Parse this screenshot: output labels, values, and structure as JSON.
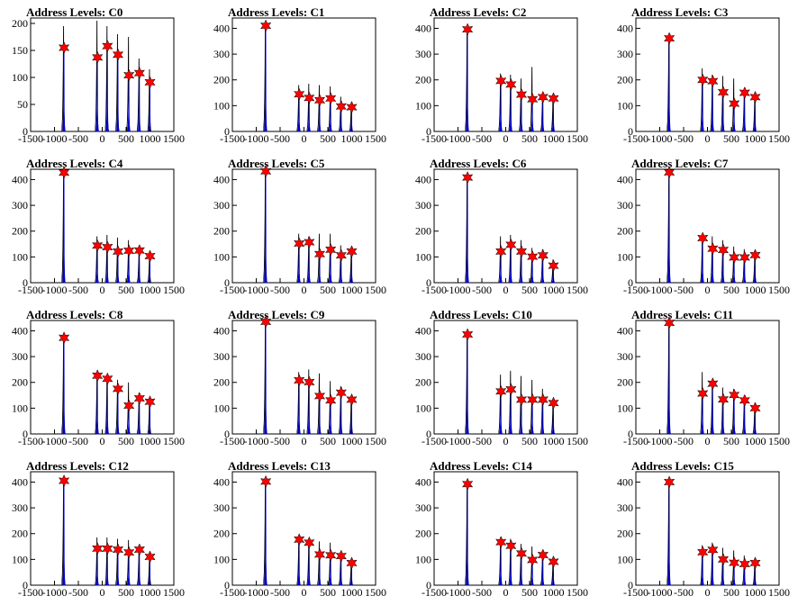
{
  "chart_data": [
    {
      "type": "histogram",
      "title": "Address Levels: C0",
      "xlim": [
        -1500,
        1500
      ],
      "ylim": [
        0,
        210
      ],
      "xticks": [
        -1500,
        -1000,
        -500,
        0,
        500,
        1000,
        1500
      ],
      "yticks": [
        0,
        50,
        100,
        150,
        200
      ],
      "tick_labels_x": [
        "-1500",
        "-1000",
        "-500",
        "0",
        "500",
        "1000",
        "1500"
      ],
      "tick_labels_y": [
        "0",
        "50",
        "100",
        "150",
        "200"
      ],
      "peaks_x": [
        -800,
        -100,
        110,
        330,
        560,
        780,
        1000
      ],
      "peak_max": [
        195,
        205,
        195,
        180,
        175,
        135,
        115
      ],
      "peak_blue": [
        160,
        140,
        165,
        150,
        105,
        110,
        95
      ],
      "stars_y": [
        155,
        137,
        158,
        142,
        104,
        108,
        91
      ]
    },
    {
      "type": "histogram",
      "title": "Address Levels: C1",
      "xlim": [
        -1500,
        1500
      ],
      "ylim": [
        0,
        440
      ],
      "xticks": [
        -1500,
        -1000,
        -500,
        0,
        500,
        1000,
        1500
      ],
      "yticks": [
        0,
        100,
        200,
        300,
        400
      ],
      "tick_labels_x": [
        "-1500",
        "-1000",
        "-500",
        "0",
        "500",
        "1000",
        "1500"
      ],
      "tick_labels_y": [
        "0",
        "100",
        "200",
        "300",
        "400"
      ],
      "peaks_x": [
        -800,
        -100,
        110,
        330,
        560,
        780,
        1000
      ],
      "peak_max": [
        410,
        180,
        185,
        180,
        175,
        135,
        110
      ],
      "peak_blue": [
        405,
        150,
        135,
        125,
        125,
        105,
        95
      ],
      "stars_y": [
        410,
        144,
        130,
        121,
        128,
        97,
        94
      ]
    },
    {
      "type": "histogram",
      "title": "Address Levels: C2",
      "xlim": [
        -1500,
        1500
      ],
      "ylim": [
        0,
        440
      ],
      "xticks": [
        -1500,
        -1000,
        -500,
        0,
        500,
        1000,
        1500
      ],
      "yticks": [
        0,
        100,
        200,
        300,
        400
      ],
      "tick_labels_x": [
        "-1500",
        "-1000",
        "-500",
        "0",
        "500",
        "1000",
        "1500"
      ],
      "tick_labels_y": [
        "0",
        "100",
        "200",
        "300",
        "400"
      ],
      "peaks_x": [
        -800,
        -100,
        110,
        330,
        560,
        780,
        1000
      ],
      "peak_max": [
        400,
        225,
        220,
        205,
        250,
        145,
        140
      ],
      "peak_blue": [
        395,
        195,
        185,
        145,
        125,
        135,
        130
      ],
      "stars_y": [
        396,
        196,
        182,
        143,
        125,
        133,
        128
      ]
    },
    {
      "type": "histogram",
      "title": "Address Levels: C3",
      "xlim": [
        -1500,
        1500
      ],
      "ylim": [
        0,
        440
      ],
      "xticks": [
        -1500,
        -1000,
        -500,
        0,
        500,
        1000,
        1500
      ],
      "yticks": [
        0,
        100,
        200,
        300,
        400
      ],
      "tick_labels_x": [
        "-1500",
        "-1000",
        "-500",
        "0",
        "500",
        "1000",
        "1500"
      ],
      "tick_labels_y": [
        "0",
        "100",
        "200",
        "300",
        "400"
      ],
      "peaks_x": [
        -800,
        -100,
        110,
        330,
        560,
        780,
        1000
      ],
      "peak_max": [
        365,
        245,
        220,
        215,
        205,
        160,
        140
      ],
      "peak_blue": [
        360,
        195,
        190,
        150,
        110,
        145,
        130
      ],
      "stars_y": [
        361,
        200,
        195,
        152,
        108,
        150,
        133
      ]
    },
    {
      "type": "histogram",
      "title": "Address Levels: C4",
      "xlim": [
        -1500,
        1500
      ],
      "ylim": [
        0,
        440
      ],
      "xticks": [
        -1500,
        -1000,
        -500,
        0,
        500,
        1000,
        1500
      ],
      "yticks": [
        0,
        100,
        200,
        300,
        400
      ],
      "tick_labels_x": [
        "-1500",
        "-1000",
        "-500",
        "0",
        "500",
        "1000",
        "1500"
      ],
      "tick_labels_y": [
        "0",
        "100",
        "200",
        "300",
        "400"
      ],
      "peaks_x": [
        -800,
        -100,
        110,
        330,
        560,
        780,
        1000
      ],
      "peak_max": [
        430,
        180,
        185,
        175,
        165,
        130,
        110
      ],
      "peak_blue": [
        425,
        140,
        140,
        125,
        125,
        120,
        100
      ],
      "stars_y": [
        427,
        144,
        138,
        121,
        124,
        125,
        103
      ]
    },
    {
      "type": "histogram",
      "title": "Address Levels: C5",
      "xlim": [
        -1500,
        1500
      ],
      "ylim": [
        0,
        440
      ],
      "xticks": [
        -1500,
        -1000,
        -500,
        0,
        500,
        1000,
        1500
      ],
      "yticks": [
        0,
        100,
        200,
        300,
        400
      ],
      "tick_labels_x": [
        "-1500",
        "-1000",
        "-500",
        "0",
        "500",
        "1000",
        "1500"
      ],
      "tick_labels_y": [
        "0",
        "100",
        "200",
        "300",
        "400"
      ],
      "peaks_x": [
        -800,
        -100,
        110,
        330,
        560,
        780,
        1000
      ],
      "peak_max": [
        440,
        190,
        180,
        190,
        190,
        145,
        130
      ],
      "peak_blue": [
        430,
        155,
        160,
        110,
        125,
        105,
        120
      ],
      "stars_y": [
        432,
        152,
        157,
        111,
        128,
        106,
        121
      ]
    },
    {
      "type": "histogram",
      "title": "Address Levels: C6",
      "xlim": [
        -1500,
        1500
      ],
      "ylim": [
        0,
        440
      ],
      "xticks": [
        -1500,
        -1000,
        -500,
        0,
        500,
        1000,
        1500
      ],
      "yticks": [
        0,
        100,
        200,
        300,
        400
      ],
      "tick_labels_x": [
        "-1500",
        "-1000",
        "-500",
        "0",
        "500",
        "1000",
        "1500"
      ],
      "tick_labels_y": [
        "0",
        "100",
        "200",
        "300",
        "400"
      ],
      "peaks_x": [
        -800,
        -100,
        110,
        330,
        560,
        780,
        1000
      ],
      "peak_max": [
        410,
        180,
        185,
        165,
        135,
        130,
        90
      ],
      "peak_blue": [
        405,
        120,
        150,
        120,
        100,
        105,
        70
      ],
      "stars_y": [
        408,
        121,
        147,
        121,
        101,
        106,
        66
      ]
    },
    {
      "type": "histogram",
      "title": "Address Levels: C7",
      "xlim": [
        -1500,
        1500
      ],
      "ylim": [
        0,
        440
      ],
      "xticks": [
        -1500,
        -1000,
        -500,
        0,
        500,
        1000,
        1500
      ],
      "yticks": [
        0,
        100,
        200,
        300,
        400
      ],
      "tick_labels_x": [
        "-1500",
        "-1000",
        "-500",
        "0",
        "500",
        "1000",
        "1500"
      ],
      "tick_labels_y": [
        "0",
        "100",
        "200",
        "300",
        "400"
      ],
      "peaks_x": [
        -800,
        -100,
        110,
        330,
        560,
        780,
        1000
      ],
      "peak_max": [
        430,
        185,
        180,
        165,
        140,
        130,
        115
      ],
      "peak_blue": [
        425,
        175,
        135,
        130,
        100,
        100,
        105
      ],
      "stars_y": [
        428,
        173,
        132,
        127,
        98,
        98,
        107
      ]
    },
    {
      "type": "histogram",
      "title": "Address Levels: C8",
      "xlim": [
        -1500,
        1500
      ],
      "ylim": [
        0,
        440
      ],
      "xticks": [
        -1500,
        -1000,
        -500,
        0,
        500,
        1000,
        1500
      ],
      "yticks": [
        0,
        100,
        200,
        300,
        400
      ],
      "tick_labels_x": [
        "-1500",
        "-1000",
        "-500",
        "0",
        "500",
        "1000",
        "1500"
      ],
      "tick_labels_y": [
        "0",
        "100",
        "200",
        "300",
        "400"
      ],
      "peaks_x": [
        -800,
        -100,
        110,
        330,
        560,
        780,
        1000
      ],
      "peak_max": [
        380,
        235,
        230,
        210,
        200,
        160,
        140
      ],
      "peak_blue": [
        375,
        225,
        215,
        175,
        110,
        140,
        125
      ],
      "stars_y": [
        373,
        226,
        214,
        175,
        110,
        138,
        125
      ]
    },
    {
      "type": "histogram",
      "title": "Address Levels: C9",
      "xlim": [
        -1500,
        1500
      ],
      "ylim": [
        0,
        440
      ],
      "xticks": [
        -1500,
        -1000,
        -500,
        0,
        500,
        1000,
        1500
      ],
      "yticks": [
        0,
        100,
        200,
        300,
        400
      ],
      "tick_labels_x": [
        "-1500",
        "-1000",
        "-500",
        "0",
        "500",
        "1000",
        "1500"
      ],
      "tick_labels_y": [
        "0",
        "100",
        "200",
        "300",
        "400"
      ],
      "peaks_x": [
        -800,
        -100,
        110,
        330,
        560,
        780,
        1000
      ],
      "peak_max": [
        440,
        240,
        250,
        235,
        205,
        185,
        150
      ],
      "peak_blue": [
        435,
        210,
        200,
        150,
        130,
        160,
        135
      ],
      "stars_y": [
        435,
        208,
        201,
        147,
        130,
        160,
        133
      ]
    },
    {
      "type": "histogram",
      "title": "Address Levels: C10",
      "xlim": [
        -1500,
        1500
      ],
      "ylim": [
        0,
        440
      ],
      "xticks": [
        -1500,
        -1000,
        -500,
        0,
        500,
        1000,
        1500
      ],
      "yticks": [
        0,
        100,
        200,
        300,
        400
      ],
      "tick_labels_x": [
        "-1500",
        "-1000",
        "-500",
        "0",
        "500",
        "1000",
        "1500"
      ],
      "tick_labels_y": [
        "0",
        "100",
        "200",
        "300",
        "400"
      ],
      "peaks_x": [
        -800,
        -100,
        110,
        330,
        560,
        780,
        1000
      ],
      "peak_max": [
        390,
        230,
        245,
        225,
        210,
        175,
        130
      ],
      "peak_blue": [
        385,
        165,
        175,
        135,
        135,
        135,
        120
      ],
      "stars_y": [
        386,
        165,
        173,
        133,
        133,
        133,
        120
      ]
    },
    {
      "type": "histogram",
      "title": "Address Levels: C11",
      "xlim": [
        -1500,
        1500
      ],
      "ylim": [
        0,
        440
      ],
      "xticks": [
        -1500,
        -1000,
        -500,
        0,
        500,
        1000,
        1500
      ],
      "yticks": [
        0,
        100,
        200,
        300,
        400
      ],
      "tick_labels_x": [
        "-1500",
        "-1000",
        "-500",
        "0",
        "500",
        "1000",
        "1500"
      ],
      "tick_labels_y": [
        "0",
        "100",
        "200",
        "300",
        "400"
      ],
      "peaks_x": [
        -800,
        -100,
        110,
        330,
        560,
        780,
        1000
      ],
      "peak_max": [
        440,
        240,
        200,
        180,
        175,
        150,
        120
      ],
      "peak_blue": [
        430,
        160,
        195,
        135,
        150,
        130,
        100
      ],
      "stars_y": [
        431,
        157,
        195,
        134,
        151,
        130,
        100
      ]
    },
    {
      "type": "histogram",
      "title": "Address Levels: C12",
      "xlim": [
        -1500,
        1500
      ],
      "ylim": [
        0,
        440
      ],
      "xticks": [
        -1500,
        -1000,
        -500,
        0,
        500,
        1000,
        1500
      ],
      "yticks": [
        0,
        100,
        200,
        300,
        400
      ],
      "tick_labels_x": [
        "-1500",
        "-1000",
        "-500",
        "0",
        "500",
        "1000",
        "1500"
      ],
      "tick_labels_y": [
        "0",
        "100",
        "200",
        "300",
        "400"
      ],
      "peaks_x": [
        -800,
        -100,
        110,
        330,
        560,
        780,
        1000
      ],
      "peak_max": [
        410,
        185,
        185,
        180,
        175,
        150,
        120
      ],
      "peak_blue": [
        405,
        145,
        145,
        140,
        130,
        140,
        110
      ],
      "stars_y": [
        405,
        142,
        142,
        138,
        127,
        138,
        110
      ]
    },
    {
      "type": "histogram",
      "title": "Address Levels: C13",
      "xlim": [
        -1500,
        1500
      ],
      "ylim": [
        0,
        440
      ],
      "xticks": [
        -1500,
        -1000,
        -500,
        0,
        500,
        1000,
        1500
      ],
      "yticks": [
        0,
        100,
        200,
        300,
        400
      ],
      "tick_labels_x": [
        "-1500",
        "-1000",
        "-500",
        "0",
        "500",
        "1000",
        "1500"
      ],
      "tick_labels_y": [
        "0",
        "100",
        "200",
        "300",
        "400"
      ],
      "peaks_x": [
        -800,
        -100,
        110,
        330,
        560,
        780,
        1000
      ],
      "peak_max": [
        405,
        180,
        180,
        170,
        165,
        130,
        100
      ],
      "peak_blue": [
        400,
        175,
        165,
        120,
        120,
        115,
        85
      ],
      "stars_y": [
        402,
        177,
        165,
        119,
        116,
        113,
        86
      ]
    },
    {
      "type": "histogram",
      "title": "Address Levels: C14",
      "xlim": [
        -1500,
        1500
      ],
      "ylim": [
        0,
        440
      ],
      "xticks": [
        -1500,
        -1000,
        -500,
        0,
        500,
        1000,
        1500
      ],
      "yticks": [
        0,
        100,
        200,
        300,
        400
      ],
      "tick_labels_x": [
        "-1500",
        "-1000",
        "-500",
        "0",
        "500",
        "1000",
        "1500"
      ],
      "tick_labels_y": [
        "0",
        "100",
        "200",
        "300",
        "400"
      ],
      "peaks_x": [
        -800,
        -100,
        110,
        330,
        560,
        780,
        1000
      ],
      "peak_max": [
        395,
        175,
        180,
        160,
        150,
        125,
        100
      ],
      "peak_blue": [
        390,
        165,
        150,
        125,
        100,
        120,
        90
      ],
      "stars_y": [
        392,
        167,
        153,
        123,
        98,
        117,
        91
      ]
    },
    {
      "type": "histogram",
      "title": "Address Levels: C15",
      "xlim": [
        -1500,
        1500
      ],
      "ylim": [
        0,
        440
      ],
      "xticks": [
        -1500,
        -1000,
        -500,
        0,
        500,
        1000,
        1500
      ],
      "yticks": [
        0,
        100,
        200,
        300,
        400
      ],
      "tick_labels_x": [
        "-1500",
        "-1000",
        "-500",
        "0",
        "500",
        "1000",
        "1500"
      ],
      "tick_labels_y": [
        "0",
        "100",
        "200",
        "300",
        "400"
      ],
      "peaks_x": [
        -800,
        -100,
        110,
        330,
        560,
        780,
        1000
      ],
      "peak_max": [
        405,
        155,
        165,
        145,
        135,
        115,
        95
      ],
      "peak_blue": [
        400,
        135,
        140,
        105,
        90,
        90,
        85
      ],
      "stars_y": [
        400,
        128,
        137,
        100,
        87,
        82,
        86
      ]
    }
  ],
  "colors": {
    "outline": "#000000",
    "fill": "#0000cc",
    "marker": "#ff0000",
    "marker_stroke": "#000000"
  }
}
